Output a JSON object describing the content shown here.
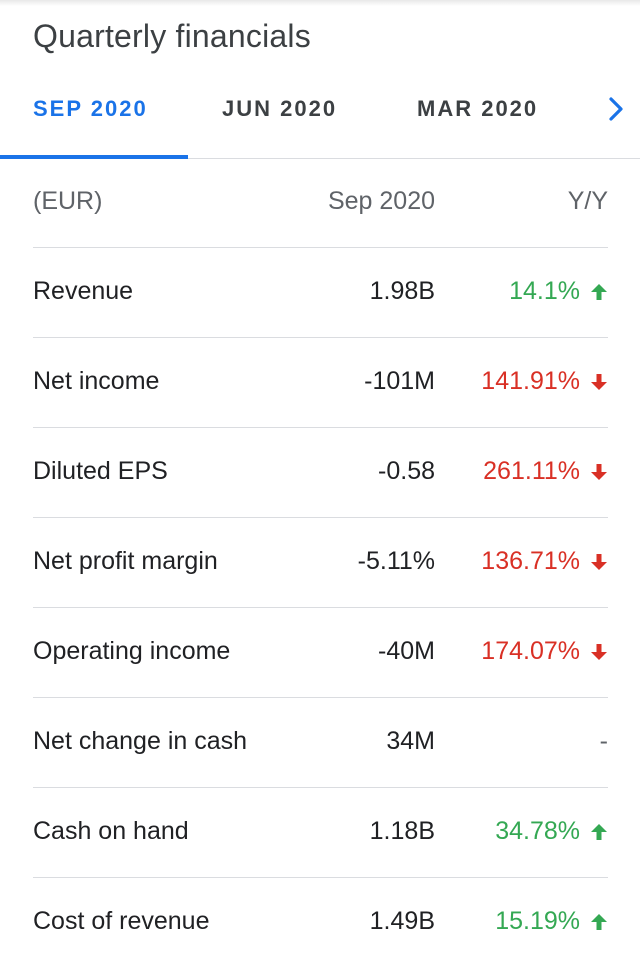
{
  "title": "Quarterly financials",
  "tabs": [
    {
      "label": "SEP 2020",
      "active": true
    },
    {
      "label": "JUN 2020",
      "active": false
    },
    {
      "label": "MAR 2020",
      "active": false
    }
  ],
  "colors": {
    "accent": "#1a73e8",
    "positive": "#34a853",
    "negative": "#d93025"
  },
  "table": {
    "header": {
      "label": "(EUR)",
      "value": "Sep 2020",
      "change": "Y/Y"
    },
    "rows": [
      {
        "label": "Revenue",
        "value": "1.98B",
        "change": "14.1%",
        "direction": "up"
      },
      {
        "label": "Net income",
        "value": "-101M",
        "change": "141.91%",
        "direction": "down"
      },
      {
        "label": "Diluted EPS",
        "value": "-0.58",
        "change": "261.11%",
        "direction": "down"
      },
      {
        "label": "Net profit margin",
        "value": "-5.11%",
        "change": "136.71%",
        "direction": "down"
      },
      {
        "label": "Operating income",
        "value": "-40M",
        "change": "174.07%",
        "direction": "down"
      },
      {
        "label": "Net change in cash",
        "value": "34M",
        "change": "-",
        "direction": "none"
      },
      {
        "label": "Cash on hand",
        "value": "1.18B",
        "change": "34.78%",
        "direction": "up"
      },
      {
        "label": "Cost of revenue",
        "value": "1.49B",
        "change": "15.19%",
        "direction": "up"
      }
    ]
  },
  "icons": {
    "next": "chevron-right-icon",
    "up": "arrow-up-icon",
    "down": "arrow-down-icon"
  }
}
